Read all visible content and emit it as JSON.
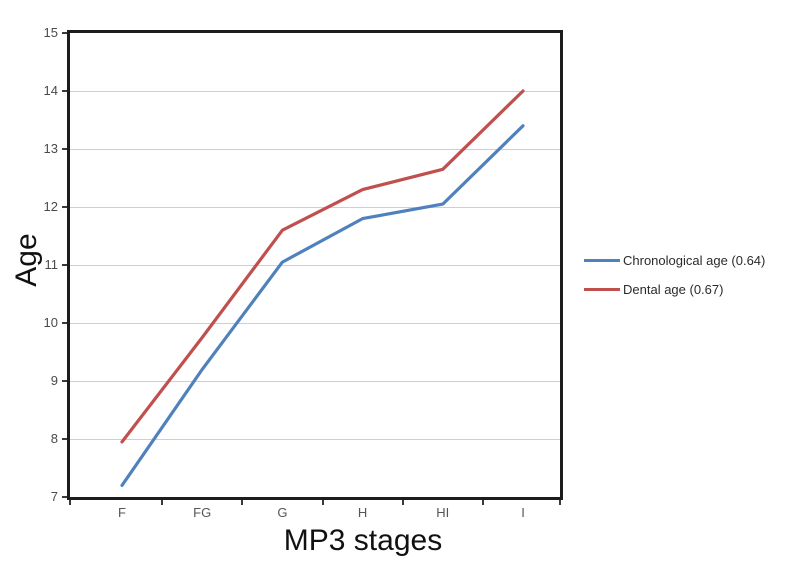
{
  "chart_data": {
    "type": "line",
    "title": "",
    "xlabel": "MP3 stages",
    "ylabel": "Age",
    "categories": [
      "F",
      "FG",
      "G",
      "H",
      "HI",
      "I"
    ],
    "yticks": [
      7,
      8,
      9,
      10,
      11,
      12,
      13,
      14,
      15
    ],
    "ylim": [
      7,
      15
    ],
    "grid": true,
    "legend_position": "right",
    "series": [
      {
        "name": "Chronological age (0.64)",
        "color": "#4f81bd",
        "values": [
          7.2,
          9.2,
          11.05,
          11.8,
          12.05,
          13.4
        ]
      },
      {
        "name": "Dental age (0.67)",
        "color": "#c0504d",
        "values": [
          7.95,
          9.75,
          11.6,
          12.3,
          12.65,
          14.0
        ]
      }
    ],
    "colors": {
      "gridline": "#cfcfcf",
      "axis_border": "#1c1c1c",
      "tick_label": "#4a4a4a",
      "axis_title": "#111111",
      "legend_text": "#2b2b2b",
      "background": "#ffffff"
    }
  }
}
